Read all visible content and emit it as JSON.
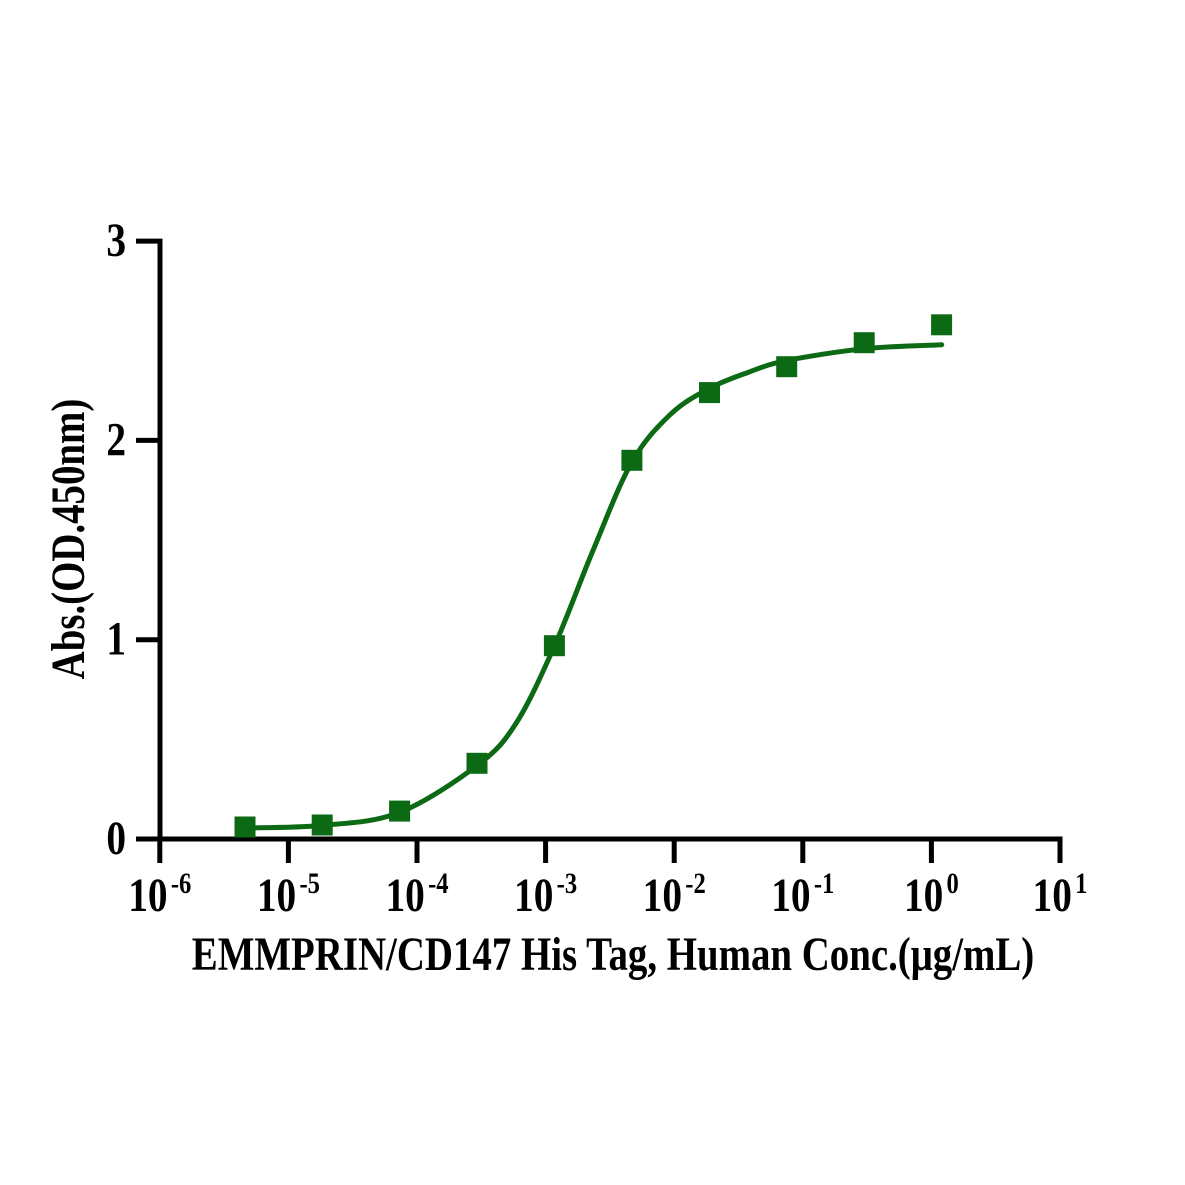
{
  "page": {
    "background": "#ffffff"
  },
  "style": {
    "accent_green": "#0d6a14",
    "axis_color": "#000000"
  },
  "chart_data": {
    "type": "scatter",
    "description": "sigmoidal dose-response binding curve with fitted line",
    "title": "",
    "xlabel": "EMMPRIN/CD147 His Tag, Human Conc.(μg/mL)",
    "ylabel": "Abs.(OD.450nm)",
    "x_scale": "log10",
    "grid": false,
    "legend": false,
    "x_axis": {
      "tick_base": "10",
      "tick_exponents": [
        -6,
        -5,
        -4,
        -3,
        -2,
        -1,
        0,
        1
      ],
      "range_log10": [
        -6,
        1
      ]
    },
    "y_axis": {
      "ticks": [
        0,
        1,
        2,
        3
      ],
      "range": [
        0,
        3
      ]
    },
    "series": [
      {
        "marker": "filled-square",
        "color": "#0d6a14",
        "x_conc_ug_per_mL": [
          4.6e-06,
          1.83e-05,
          7.32e-05,
          0.000293,
          0.00117,
          0.00469,
          0.0188,
          0.075,
          0.3,
          1.2
        ],
        "y_abs_od450": [
          0.06,
          0.07,
          0.14,
          0.38,
          0.97,
          1.9,
          2.24,
          2.37,
          2.49,
          2.58
        ]
      }
    ],
    "fit_curve": {
      "color": "#0d6a14",
      "points_logx_y": [
        [
          -5.34,
          0.055
        ],
        [
          -4.74,
          0.068
        ],
        [
          -4.14,
          0.132
        ],
        [
          -3.53,
          0.37
        ],
        [
          -3.23,
          0.58
        ],
        [
          -2.93,
          0.97
        ],
        [
          -2.63,
          1.45
        ],
        [
          -2.33,
          1.89
        ],
        [
          -2.03,
          2.13
        ],
        [
          -1.73,
          2.26
        ],
        [
          -1.43,
          2.34
        ],
        [
          -1.13,
          2.4
        ],
        [
          -0.52,
          2.46
        ],
        [
          0.08,
          2.48
        ]
      ]
    }
  }
}
